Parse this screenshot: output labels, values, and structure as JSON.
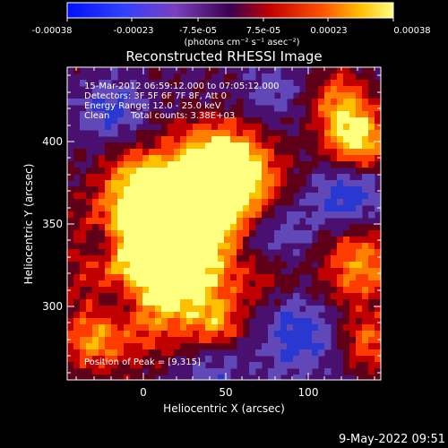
{
  "colorbar": {
    "tick_labels": [
      "-0.00038",
      "-0.00023",
      "-7.5e-05",
      "7.5e-05",
      "0.00023",
      "0.00038"
    ],
    "unit_label": "(photons cm⁻² s⁻¹ asec⁻²)",
    "range": [
      -0.00038,
      0.00038
    ]
  },
  "plot": {
    "title": "Reconstructed RHESSI Image",
    "xlabel": "Heliocentric X (arcsec)",
    "ylabel": "Heliocentric Y (arcsec)",
    "x_ticks": [
      "0",
      "50",
      "100"
    ],
    "y_ticks": [
      "300",
      "350",
      "400"
    ],
    "xlim": [
      -45,
      140
    ],
    "ylim": [
      255,
      440
    ]
  },
  "annotations": {
    "line1": "15-Mar-2012 06:59:12.000 to 07:05:12.000",
    "line2": "Detectors: 3F 5F 6F 7F 8F, Att 0",
    "line3": "Energy Range: 12.0 - 25.0 keV",
    "line4_left": "Clean",
    "line4_right": "Total counts: 3.38E+03",
    "peak": "Position of Peak = [9,315]"
  },
  "footer": {
    "timestamp": "9-May-2022 09:51"
  },
  "colors": {
    "background": "#000000",
    "text": "#ffffff"
  }
}
